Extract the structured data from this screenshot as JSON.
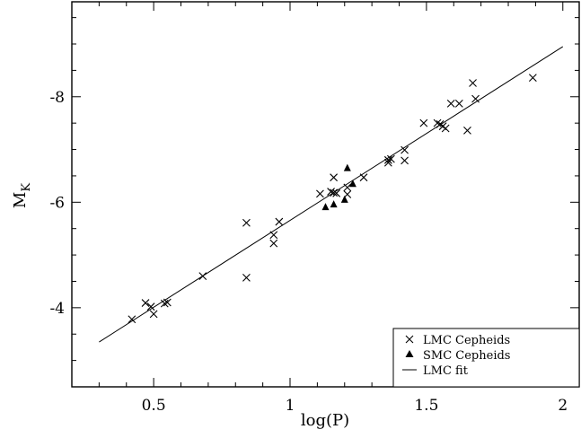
{
  "chart_data": {
    "type": "scatter",
    "xlabel": "log(P)",
    "ylabel_main": "M",
    "ylabel_sub": "K",
    "xlim": [
      0.2,
      2.06
    ],
    "ylim": [
      -2.5,
      -9.8
    ],
    "y_inverted": true,
    "x_major_ticks": [
      0.5,
      1,
      1.5,
      2
    ],
    "x_tick_labels": [
      "0.5",
      "1",
      "1.5",
      "2"
    ],
    "y_major_ticks": [
      -4,
      -6,
      -8
    ],
    "y_tick_labels": [
      "-4",
      "-6",
      "-8"
    ],
    "legend_position": "bottom-right",
    "series": [
      {
        "name": "LMC Cepheids",
        "marker": "x",
        "x": [
          0.42,
          0.47,
          0.49,
          0.5,
          0.54,
          0.55,
          0.68,
          0.84,
          0.84,
          0.94,
          0.94,
          0.96,
          1.11,
          1.15,
          1.16,
          1.16,
          1.17,
          1.21,
          1.21,
          1.27,
          1.36,
          1.36,
          1.37,
          1.42,
          1.42,
          1.49,
          1.54,
          1.55,
          1.56,
          1.57,
          1.59,
          1.62,
          1.65,
          1.67,
          1.68,
          1.89
        ],
        "y": [
          -3.78,
          -4.09,
          -4.02,
          -3.88,
          -4.08,
          -4.1,
          -4.6,
          -5.61,
          -4.57,
          -5.38,
          -5.22,
          -5.63,
          -6.16,
          -6.2,
          -6.47,
          -6.18,
          -6.17,
          -6.15,
          -6.28,
          -6.47,
          -6.75,
          -6.8,
          -6.82,
          -6.99,
          -6.79,
          -7.5,
          -7.5,
          -7.48,
          -7.44,
          -7.4,
          -7.87,
          -7.87,
          -7.36,
          -8.26,
          -7.96,
          -8.36
        ]
      },
      {
        "name": "SMC Cepheids",
        "marker": "triangle",
        "x": [
          1.13,
          1.16,
          1.2,
          1.21,
          1.23
        ],
        "y": [
          -5.91,
          -5.96,
          -6.05,
          -6.65,
          -6.35
        ]
      }
    ],
    "fit": {
      "name": "LMC fit",
      "x": [
        0.3,
        2.0
      ],
      "y": [
        -3.35,
        -8.95
      ]
    }
  }
}
